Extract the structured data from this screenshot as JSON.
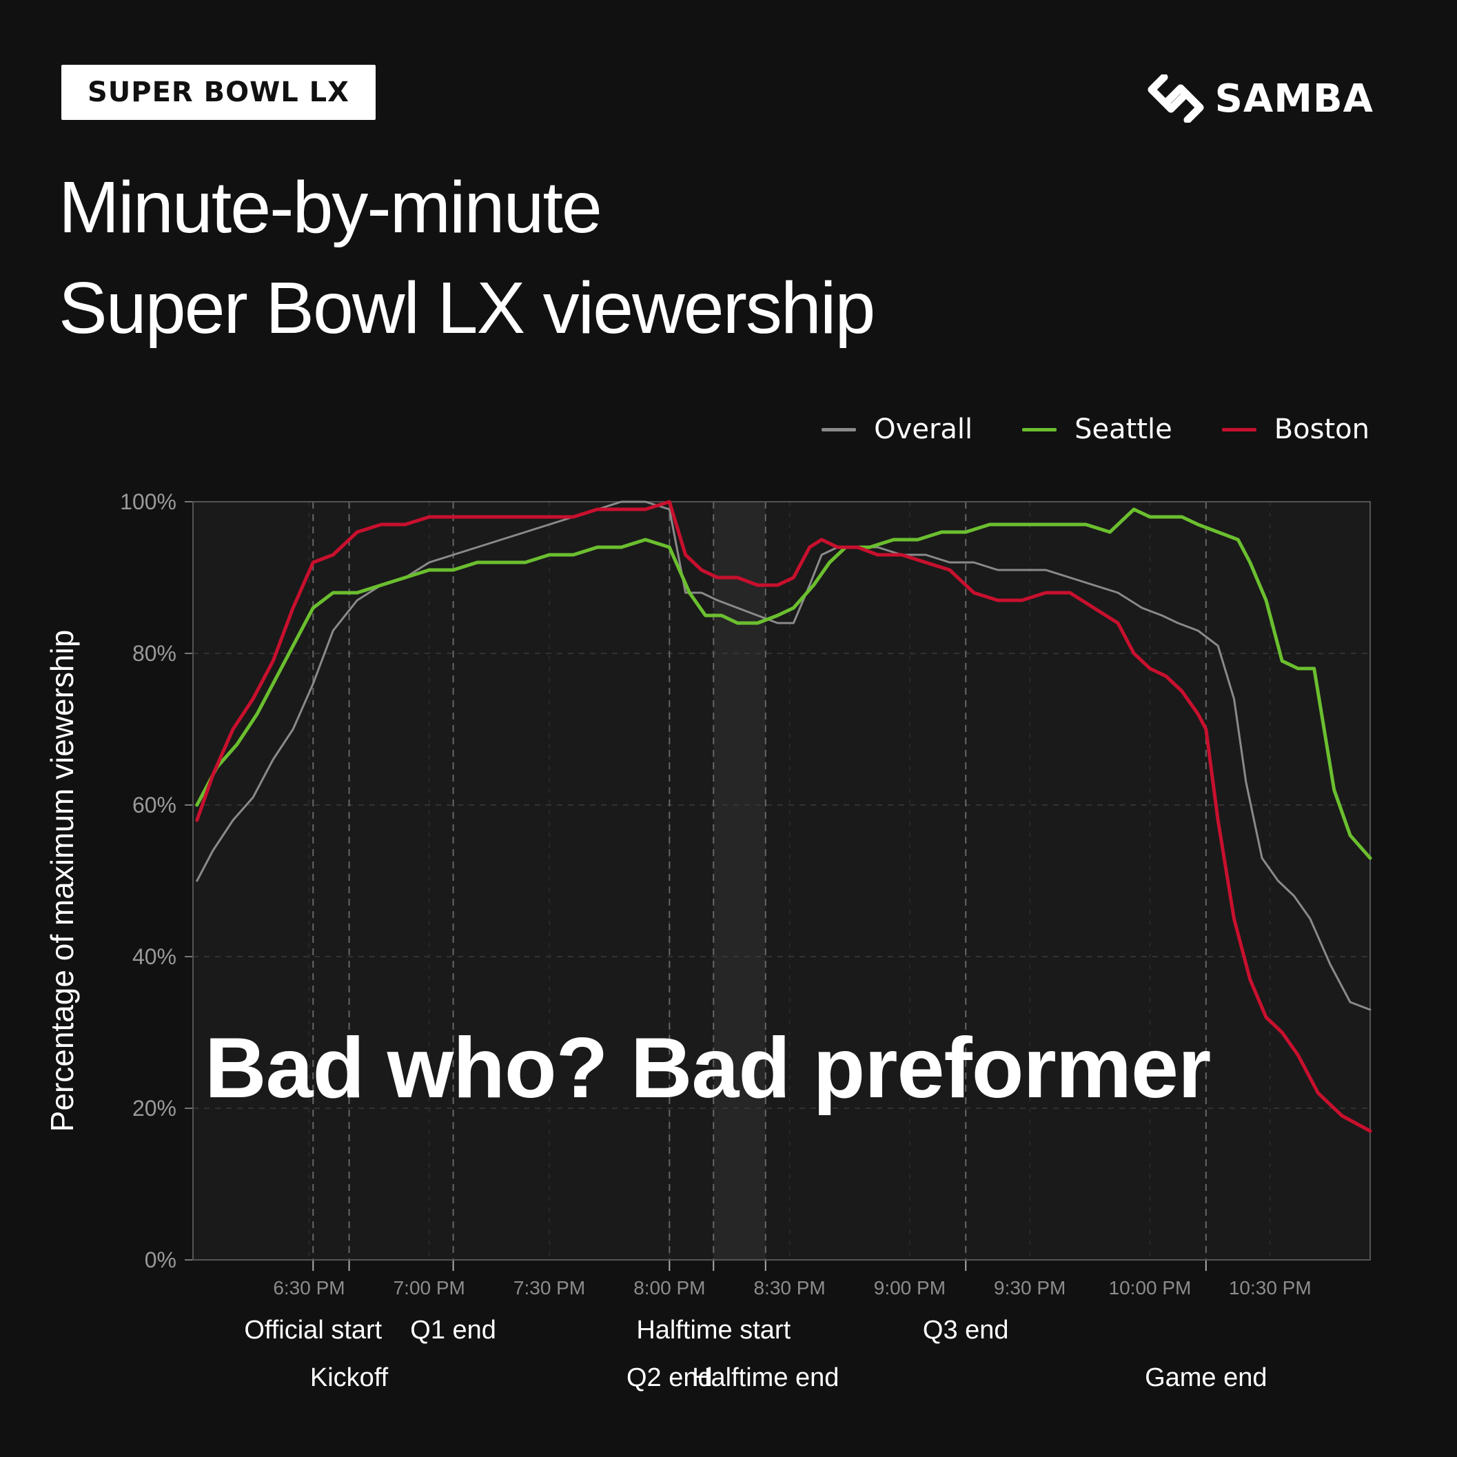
{
  "badge": "SUPER BOWL LX",
  "brand": {
    "name": "SAMBA",
    "icon": "samba-logo-icon"
  },
  "title_lines": [
    "Minute-by-minute",
    "Super Bowl LX viewership"
  ],
  "overlay_caption": "Bad who? Bad preformer",
  "colors": {
    "background": "#111111",
    "overall": "#8a8a8a",
    "seattle": "#6bbf2f",
    "boston": "#c8102e"
  },
  "chart_data": {
    "type": "line",
    "title": "Minute-by-minute Super Bowl LX viewership",
    "xlabel": "",
    "ylabel": "Percentage of maximum viewership",
    "ylim": [
      0,
      100
    ],
    "yticks": [
      "0%",
      "20%",
      "40%",
      "60%",
      "80%",
      "100%"
    ],
    "xticks": [
      "6:30 PM",
      "7:00 PM",
      "7:30 PM",
      "8:00 PM",
      "8:30 PM",
      "9:00 PM",
      "9:30 PM",
      "10:00 PM",
      "10:30 PM"
    ],
    "xtick_minutes": [
      390,
      420,
      450,
      480,
      510,
      540,
      570,
      600,
      630
    ],
    "xlim_minutes": [
      361,
      655
    ],
    "grid": true,
    "legend_position": "top-right",
    "events": [
      {
        "label": "Official start",
        "minute": 391,
        "row": 1
      },
      {
        "label": "Kickoff",
        "minute": 400,
        "row": 2
      },
      {
        "label": "Q1 end",
        "minute": 426,
        "row": 1
      },
      {
        "label": "Q2 end",
        "minute": 480,
        "row": 2
      },
      {
        "label": "Halftime start",
        "minute": 491,
        "row": 1
      },
      {
        "label": "Halftime end",
        "minute": 504,
        "row": 2
      },
      {
        "label": "Q3 end",
        "minute": 554,
        "row": 1
      },
      {
        "label": "Game end",
        "minute": 614,
        "row": 2
      }
    ],
    "halftime_band_minutes": [
      491,
      504
    ],
    "series": [
      {
        "name": "Overall",
        "color": "#8a8a8a",
        "x": [
          362,
          366,
          371,
          376,
          381,
          386,
          391,
          396,
          402,
          408,
          414,
          420,
          426,
          432,
          438,
          444,
          450,
          456,
          462,
          468,
          474,
          480,
          484,
          488,
          492,
          497,
          502,
          507,
          511,
          515,
          518,
          522,
          527,
          532,
          538,
          544,
          550,
          556,
          562,
          568,
          574,
          580,
          586,
          592,
          598,
          603,
          607,
          612,
          617,
          621,
          624,
          628,
          632,
          636,
          640,
          645,
          650,
          655
        ],
        "y": [
          50,
          54,
          58,
          61,
          66,
          70,
          76,
          83,
          87,
          89,
          90,
          92,
          93,
          94,
          95,
          96,
          97,
          98,
          99,
          100,
          100,
          99,
          88,
          88,
          87,
          86,
          85,
          84,
          84,
          89,
          93,
          94,
          94,
          94,
          93,
          93,
          92,
          92,
          91,
          91,
          91,
          90,
          89,
          88,
          86,
          85,
          84,
          83,
          81,
          74,
          63,
          53,
          50,
          48,
          45,
          39,
          34,
          33
        ]
      },
      {
        "name": "Seattle",
        "color": "#6bbf2f",
        "x": [
          362,
          367,
          372,
          377,
          381,
          386,
          391,
          396,
          402,
          408,
          414,
          420,
          426,
          432,
          438,
          444,
          450,
          456,
          462,
          468,
          474,
          480,
          485,
          489,
          493,
          497,
          502,
          507,
          511,
          516,
          520,
          524,
          530,
          536,
          542,
          548,
          554,
          560,
          566,
          572,
          578,
          584,
          590,
          596,
          600,
          604,
          608,
          612,
          617,
          622,
          625,
          629,
          633,
          637,
          641,
          646,
          650,
          655
        ],
        "y": [
          60,
          65,
          68,
          72,
          76,
          81,
          86,
          88,
          88,
          89,
          90,
          91,
          91,
          92,
          92,
          92,
          93,
          93,
          94,
          94,
          95,
          94,
          88,
          85,
          85,
          84,
          84,
          85,
          86,
          89,
          92,
          94,
          94,
          95,
          95,
          96,
          96,
          97,
          97,
          97,
          97,
          97,
          96,
          99,
          98,
          98,
          98,
          97,
          96,
          95,
          92,
          87,
          79,
          78,
          78,
          62,
          56,
          53
        ]
      },
      {
        "name": "Boston",
        "color": "#c8102e",
        "x": [
          362,
          366,
          371,
          376,
          381,
          386,
          391,
          396,
          402,
          408,
          414,
          420,
          426,
          432,
          438,
          444,
          450,
          456,
          462,
          468,
          474,
          480,
          484,
          488,
          492,
          497,
          502,
          507,
          511,
          515,
          518,
          522,
          527,
          532,
          538,
          544,
          550,
          556,
          562,
          568,
          574,
          580,
          586,
          592,
          596,
          600,
          604,
          608,
          612,
          614,
          617,
          621,
          625,
          629,
          633,
          637,
          642,
          648,
          655
        ],
        "y": [
          58,
          64,
          70,
          74,
          79,
          86,
          92,
          93,
          96,
          97,
          97,
          98,
          98,
          98,
          98,
          98,
          98,
          98,
          99,
          99,
          99,
          100,
          93,
          91,
          90,
          90,
          89,
          89,
          90,
          94,
          95,
          94,
          94,
          93,
          93,
          92,
          91,
          88,
          87,
          87,
          88,
          88,
          86,
          84,
          80,
          78,
          77,
          75,
          72,
          70,
          58,
          45,
          37,
          32,
          30,
          27,
          22,
          19,
          17
        ]
      }
    ]
  }
}
